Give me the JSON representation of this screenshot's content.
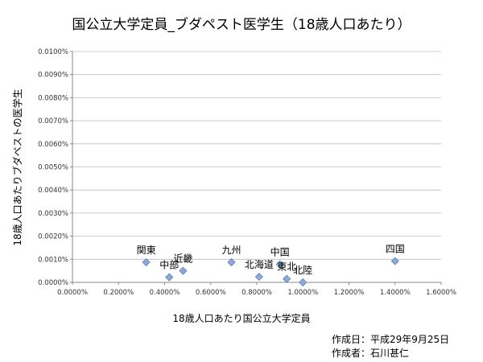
{
  "chart_data": {
    "type": "scatter",
    "title": "国公立大学定員_ブダペスト医学生（18歳人口あたり）",
    "xlabel": "18歳人口あたり国公立大学定員",
    "ylabel": "18歳人口あたりブダペストの医学生",
    "xlim": [
      0,
      0.016
    ],
    "ylim": [
      0,
      0.0001
    ],
    "x_ticks": [
      "0.0000%",
      "0.2000%",
      "0.4000%",
      "0.6000%",
      "0.8000%",
      "1.0000%",
      "1.2000%",
      "1.4000%",
      "1.6000%"
    ],
    "y_ticks": [
      "0.0000%",
      "0.0010%",
      "0.0020%",
      "0.0030%",
      "0.0040%",
      "0.0050%",
      "0.0060%",
      "0.0070%",
      "0.0080%",
      "0.0090%",
      "0.0100%"
    ],
    "grid": true,
    "marker_color": "#8eabd8",
    "marker_edge_color": "#5a7fb8",
    "points": [
      {
        "label": "関東",
        "x": 0.0032,
        "y": 8.7e-06
      },
      {
        "label": "九州",
        "x": 0.0069,
        "y": 8.7e-06
      },
      {
        "label": "四国",
        "x": 0.014,
        "y": 9.2e-06
      },
      {
        "label": "中国",
        "x": 0.009,
        "y": 7.8e-06
      },
      {
        "label": "近畿",
        "x": 0.0048,
        "y": 5e-06
      },
      {
        "label": "中部",
        "x": 0.0042,
        "y": 2.2e-06
      },
      {
        "label": "北海道",
        "x": 0.0081,
        "y": 2.4e-06
      },
      {
        "label": "東北",
        "x": 0.0093,
        "y": 1.5e-06
      },
      {
        "label": "北陸",
        "x": 0.01,
        "y": 0.0
      }
    ]
  },
  "footer": {
    "created_date": "作成日：平成29年9月25日",
    "author": "作成者：石川甚仁"
  }
}
